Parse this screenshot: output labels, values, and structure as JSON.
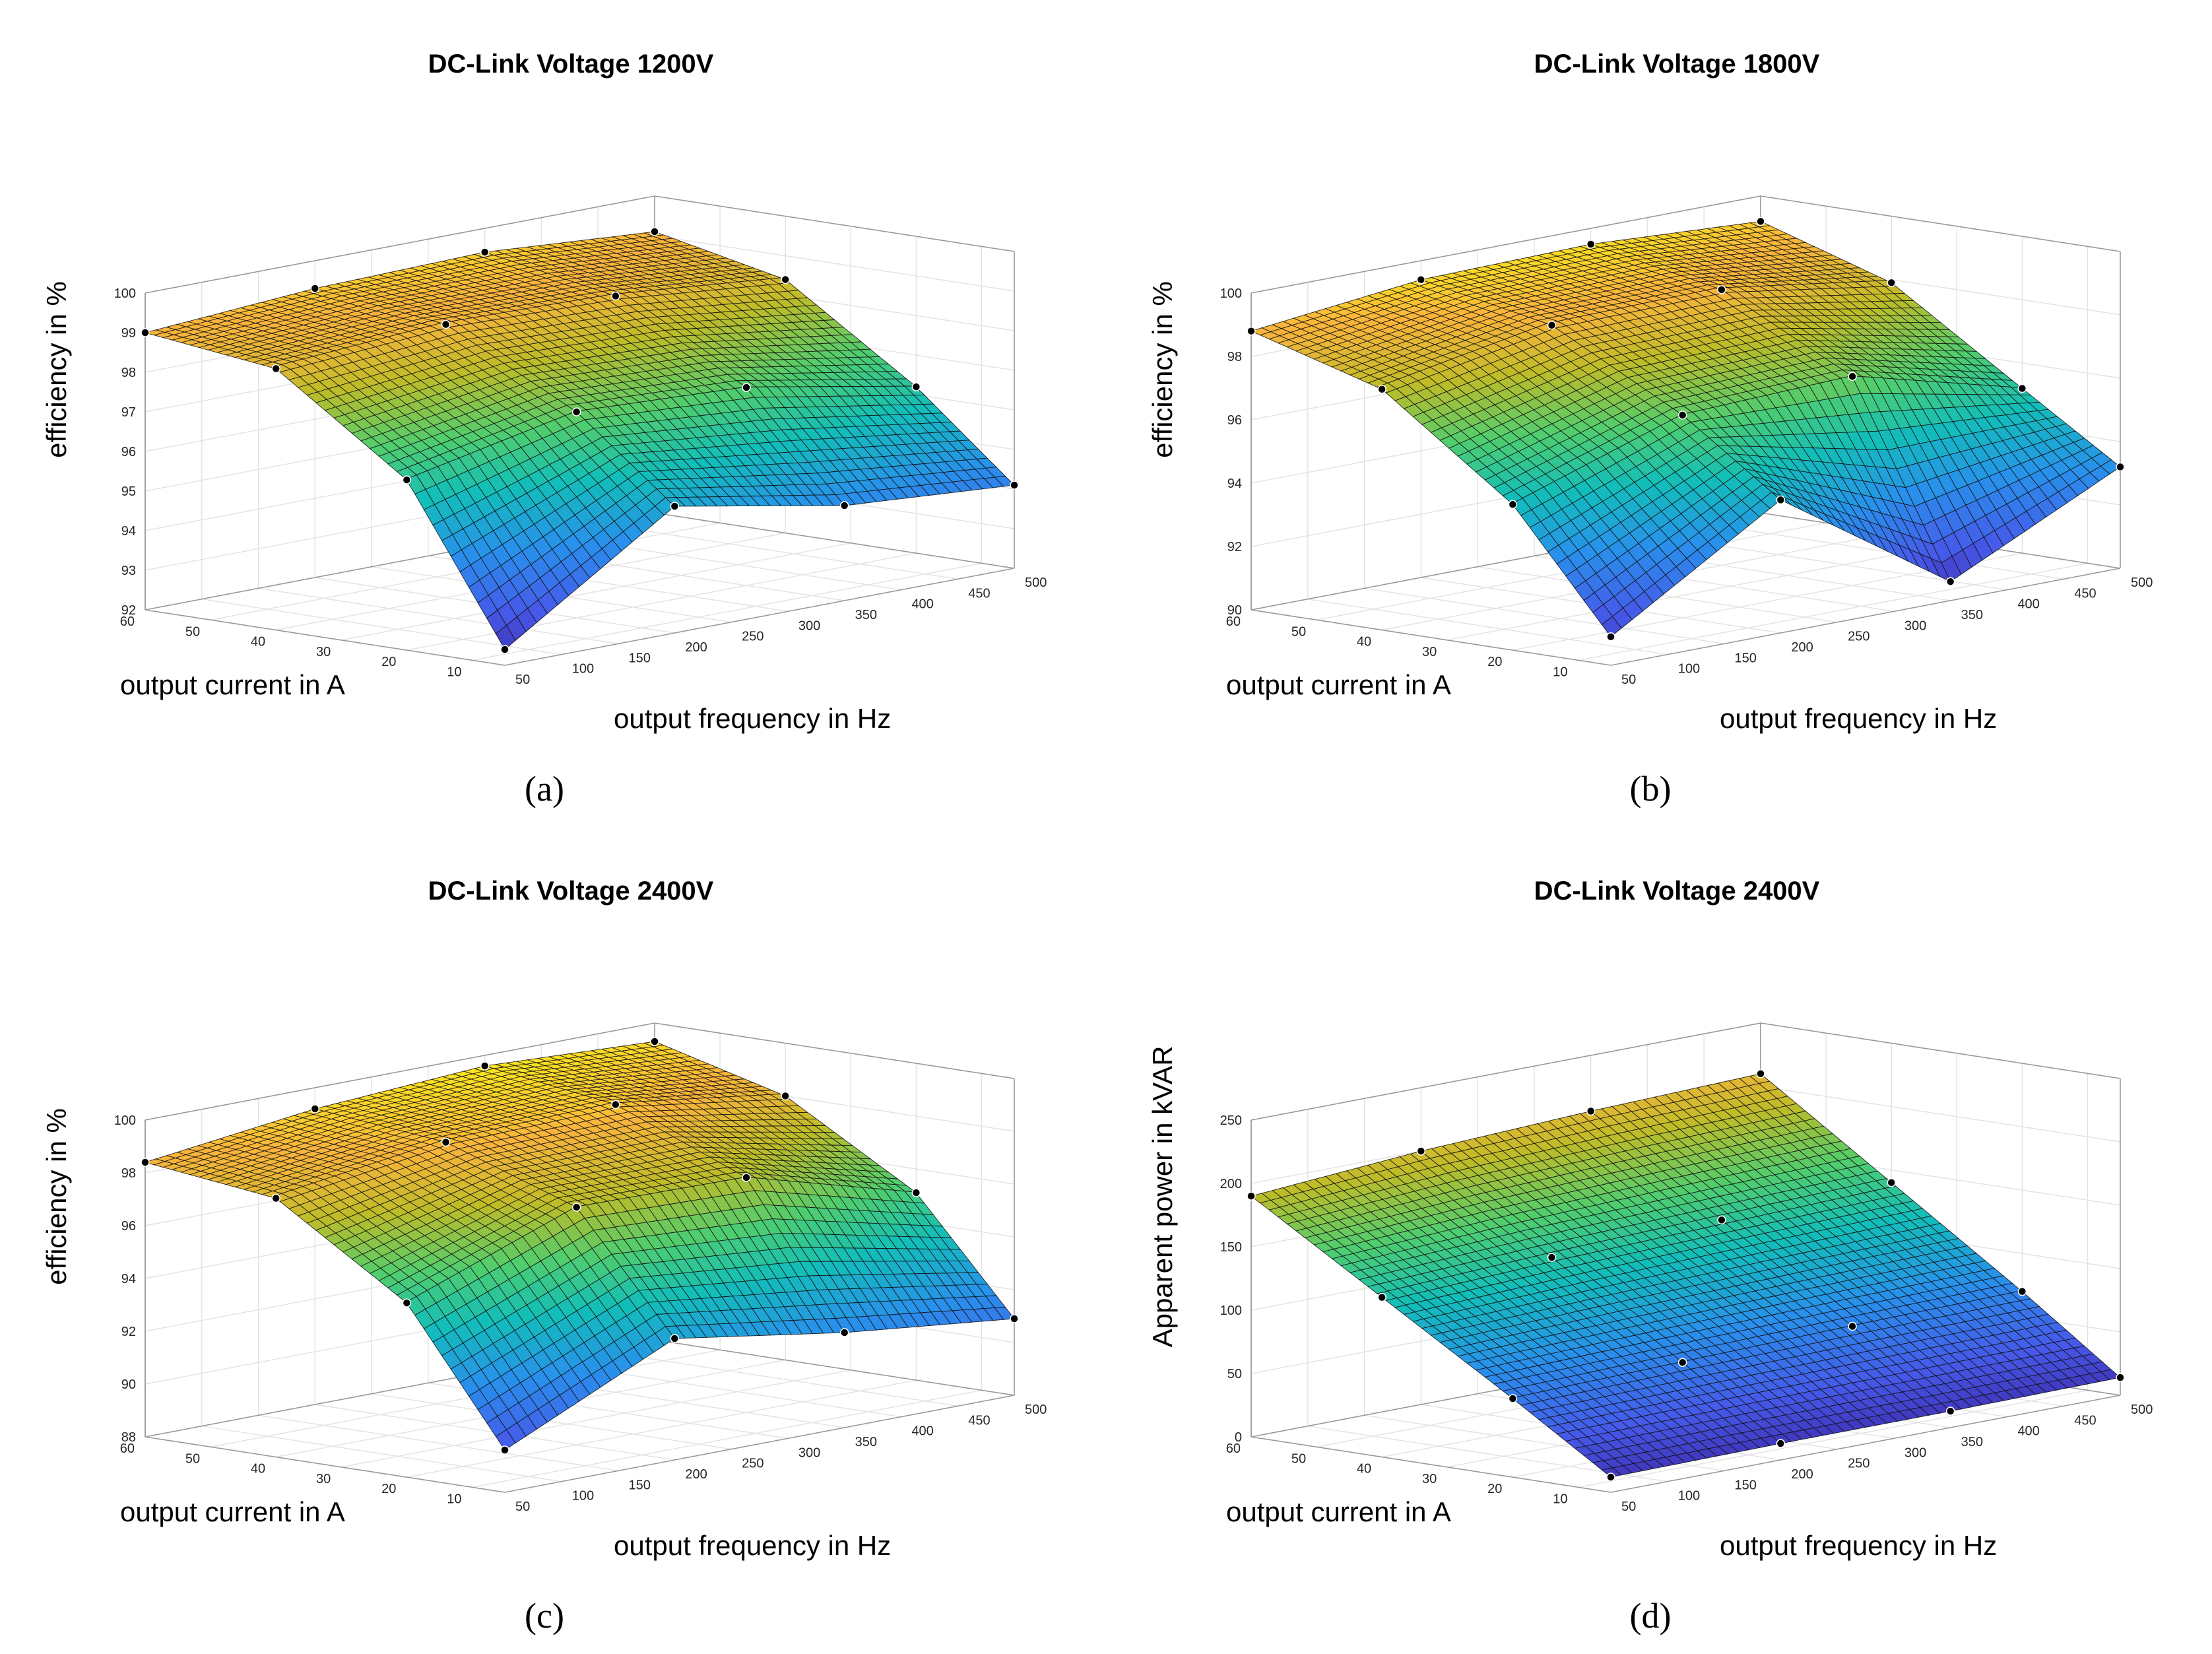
{
  "chart_data": [
    {
      "type": "surface",
      "label": "(a)",
      "title": "DC-Link Voltage 1200V",
      "xlabel": "output frequency in Hz",
      "ylabel": "output current in A",
      "zlabel": "efficiency in %",
      "xlim": [
        50,
        500
      ],
      "ylim": [
        5,
        60
      ],
      "zlim": [
        92,
        100
      ],
      "xticks": [
        50,
        100,
        150,
        200,
        250,
        300,
        350,
        400,
        450,
        500
      ],
      "yticks": [
        10,
        20,
        30,
        40,
        50,
        60
      ],
      "zticks": [
        92,
        93,
        94,
        95,
        96,
        97,
        98,
        99,
        100
      ],
      "x": [
        50,
        200,
        350,
        500
      ],
      "y": [
        60,
        40,
        20,
        5
      ],
      "z": [
        [
          99.0,
          99.3,
          99.4,
          99.1
        ],
        [
          98.6,
          98.9,
          98.8,
          98.4
        ],
        [
          96.3,
          97.2,
          97.0,
          96.2
        ],
        [
          92.4,
          95.2,
          94.4,
          94.1
        ]
      ]
    },
    {
      "type": "surface",
      "label": "(b)",
      "title": "DC-Link Voltage 1800V",
      "xlabel": "output frequency in Hz",
      "ylabel": "output current in A",
      "zlabel": "efficiency in %",
      "xlim": [
        50,
        500
      ],
      "ylim": [
        5,
        60
      ],
      "zlim": [
        90,
        100
      ],
      "xticks": [
        50,
        100,
        150,
        200,
        250,
        300,
        350,
        400,
        450,
        500
      ],
      "yticks": [
        10,
        20,
        30,
        40,
        50,
        60
      ],
      "zticks": [
        90,
        92,
        94,
        96,
        98,
        100
      ],
      "x": [
        50,
        200,
        350,
        500
      ],
      "y": [
        60,
        40,
        20,
        5
      ],
      "z": [
        [
          98.8,
          99.4,
          99.5,
          99.2
        ],
        [
          97.6,
          98.6,
          98.7,
          97.9
        ],
        [
          94.6,
          96.4,
          96.6,
          95.2
        ],
        [
          90.9,
          94.2,
          90.6,
          93.2
        ]
      ]
    },
    {
      "type": "surface",
      "label": "(c)",
      "title": "DC-Link Voltage 2400V",
      "xlabel": "output frequency in Hz",
      "ylabel": "output current in A",
      "zlabel": "efficiency in %",
      "xlim": [
        50,
        500
      ],
      "ylim": [
        5,
        60
      ],
      "zlim": [
        88,
        100
      ],
      "xticks": [
        50,
        100,
        150,
        200,
        250,
        300,
        350,
        400,
        450,
        500
      ],
      "yticks": [
        10,
        20,
        30,
        40,
        50,
        60
      ],
      "zticks": [
        88,
        90,
        92,
        94,
        96,
        98,
        100
      ],
      "x": [
        50,
        200,
        350,
        500
      ],
      "y": [
        60,
        40,
        20,
        5
      ],
      "z": [
        [
          98.4,
          99.2,
          99.6,
          99.3
        ],
        [
          97.8,
          98.7,
          98.9,
          98.0
        ],
        [
          94.6,
          97.0,
          96.9,
          95.1
        ],
        [
          89.6,
          92.6,
          91.6,
          90.9
        ]
      ]
    },
    {
      "type": "surface",
      "label": "(d)",
      "title": "DC-Link Voltage 2400V",
      "xlabel": "output frequency in Hz",
      "ylabel": "output current in A",
      "zlabel": "Apparent power in kVAR",
      "xlim": [
        50,
        500
      ],
      "ylim": [
        5,
        60
      ],
      "zlim": [
        0,
        250
      ],
      "xticks": [
        50,
        100,
        150,
        200,
        250,
        300,
        350,
        400,
        450,
        500
      ],
      "yticks": [
        10,
        20,
        30,
        40,
        50,
        60
      ],
      "zticks": [
        0,
        50,
        100,
        150,
        200,
        250
      ],
      "x": [
        50,
        200,
        350,
        500
      ],
      "y": [
        60,
        40,
        20,
        5
      ],
      "z": [
        [
          190,
          200,
          206,
          210
        ],
        [
          126,
          132,
          136,
          140
        ],
        [
          62,
          65,
          68,
          70
        ],
        [
          12,
          13,
          13,
          14
        ]
      ]
    }
  ]
}
